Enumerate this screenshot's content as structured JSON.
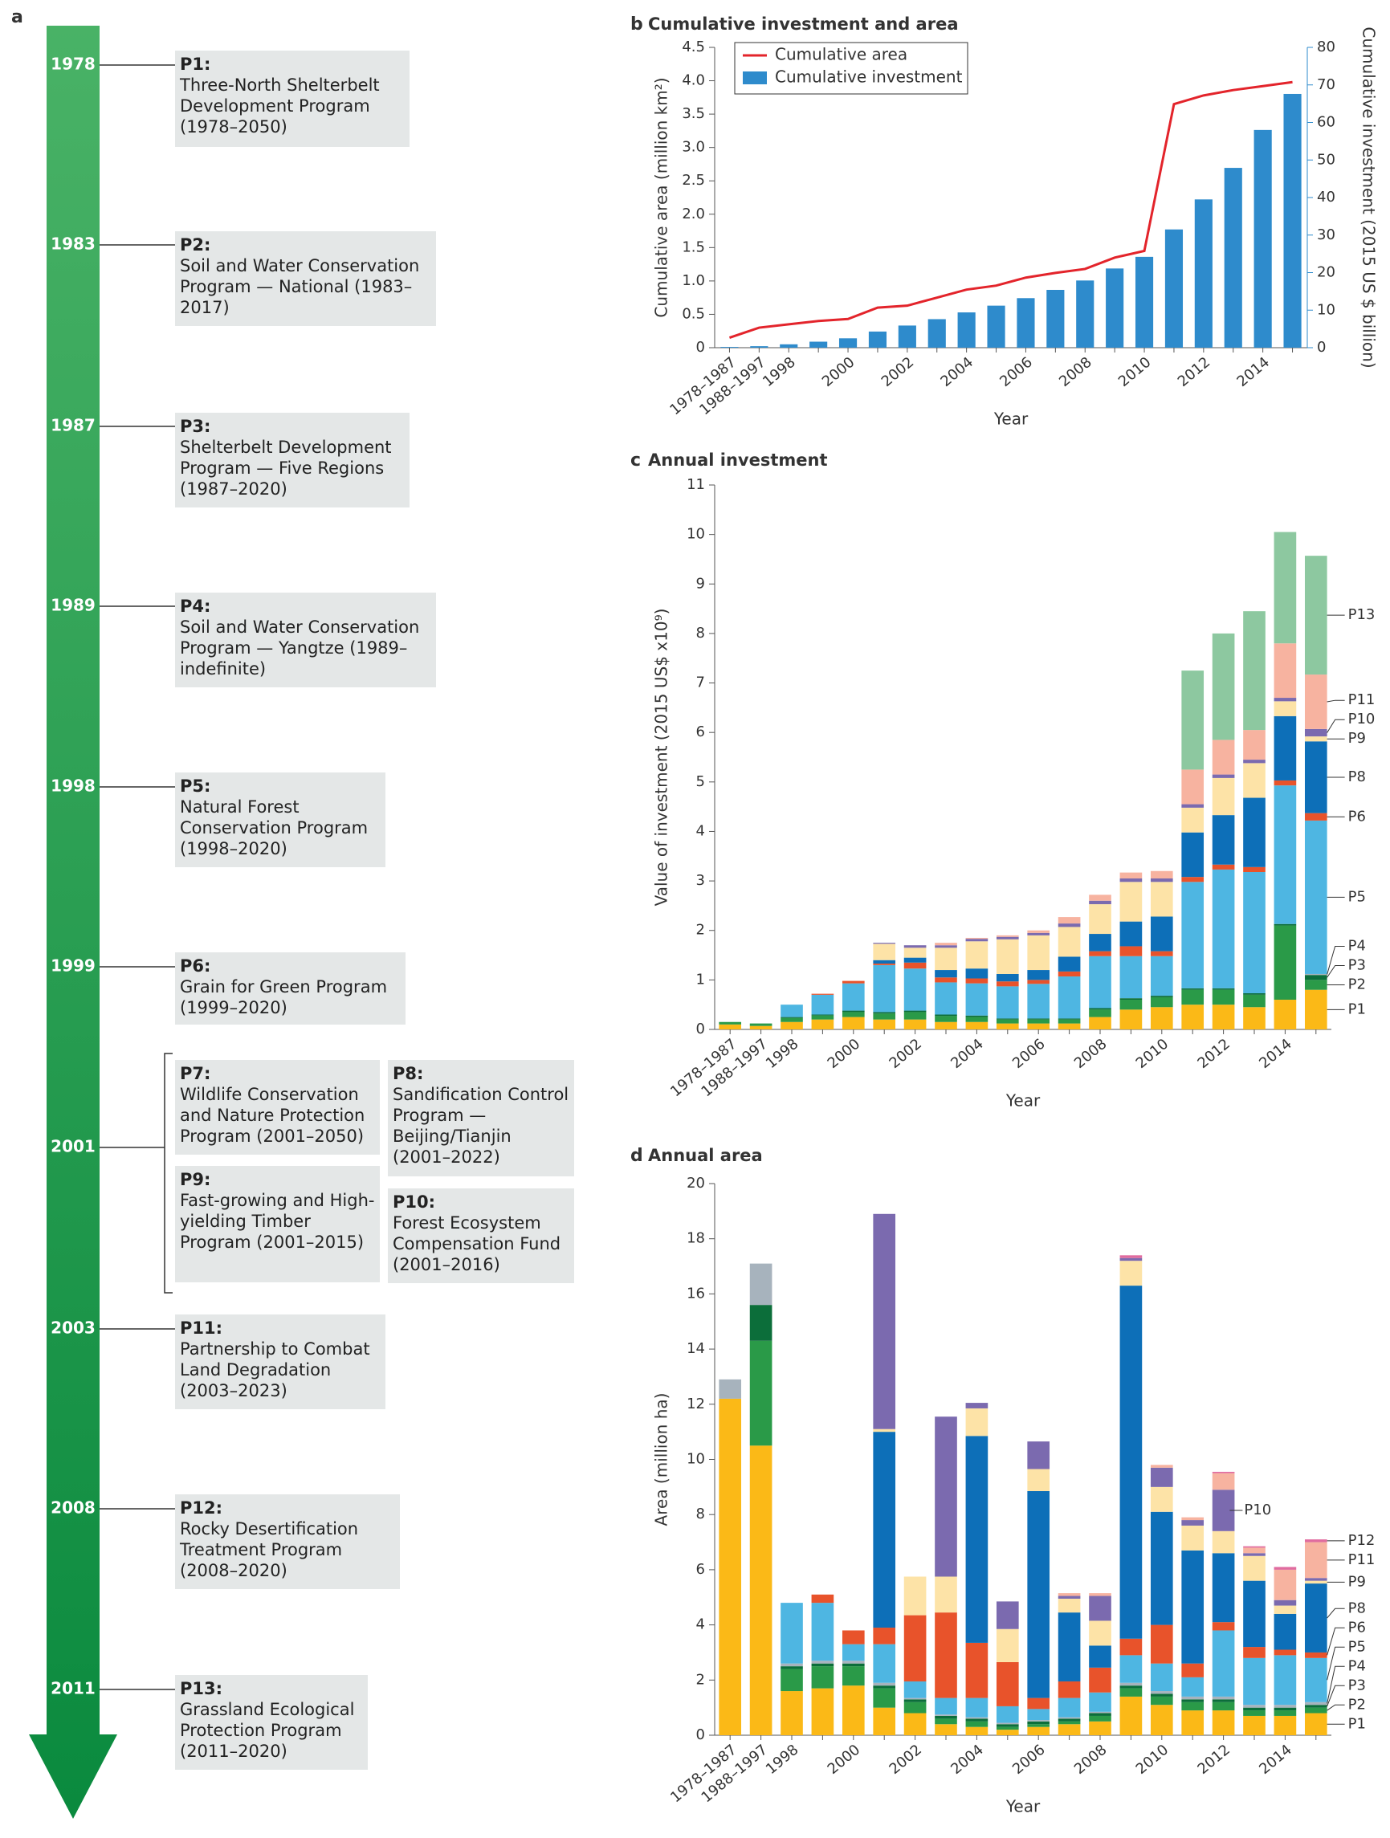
{
  "timeline": {
    "letter": "a",
    "years": [
      "1978",
      "1983",
      "1987",
      "1989",
      "1998",
      "1999",
      "2001",
      "2003",
      "2008",
      "2011"
    ],
    "programs": [
      {
        "code": "P1:",
        "name": "Three-North Shelterbelt Development Program",
        "period": "(1978–2050)"
      },
      {
        "code": "P2:",
        "name": "Soil and Water Conservation Program — National",
        "period": "(1983–2017)"
      },
      {
        "code": "P3:",
        "name": "Shelterbelt Development Program — Five Regions",
        "period": "(1987–2020)"
      },
      {
        "code": "P4:",
        "name": "Soil and Water Conservation Program — Yangtze",
        "period": "(1989–indefinite)"
      },
      {
        "code": "P5:",
        "name": "Natural Forest Conservation Program",
        "period": "(1998–2020)"
      },
      {
        "code": "P6:",
        "name": "Grain for Green Program",
        "period": "(1999–2020)"
      },
      {
        "code": "P7:",
        "name": "Wildlife Conservation and Nature Protection Program",
        "period": "(2001–2050)"
      },
      {
        "code": "P8:",
        "name": "Sandification Control Program — Beijing/Tianjin",
        "period": "(2001–2022)"
      },
      {
        "code": "P9:",
        "name": "Fast-growing and High-yielding Timber Program",
        "period": "(2001–2015)"
      },
      {
        "code": "P10:",
        "name": "Forest Ecosystem Compensation Fund",
        "period": "(2001–2016)"
      },
      {
        "code": "P11:",
        "name": "Partnership to Combat Land Degradation",
        "period": "(2003–2023)"
      },
      {
        "code": "P12:",
        "name": "Rocky Desertification Treatment Program",
        "period": "(2008–2020)"
      },
      {
        "code": "P13:",
        "name": "Grassland Ecological Protection Program",
        "period": "(2011–2020)"
      }
    ]
  },
  "chart_data": [
    {
      "type": "combo",
      "letter": "b",
      "title": "Cumulative investment and area",
      "xlabel": "Year",
      "ylabel": "Cumulative area (million km²)",
      "y2label": "Cumulative investment (2015 US $ billion)",
      "categories": [
        "1978–1987",
        "1988–1997",
        "1998",
        null,
        "2000",
        null,
        "2002",
        null,
        "2004",
        null,
        "2006",
        null,
        "2008",
        null,
        "2010",
        null,
        "2012",
        null,
        "2014",
        null
      ],
      "ylim": [
        0,
        4.5
      ],
      "yticks": [
        0,
        0.5,
        {
          "value": 1,
          "label": "1.0"
        },
        1.5,
        {
          "value": 2,
          "label": "2.0"
        },
        2.5,
        {
          "value": 3,
          "label": "3.0"
        },
        3.5,
        {
          "value": 4,
          "label": "4.0"
        },
        4.5
      ],
      "y2lim": [
        0,
        80
      ],
      "y2ticks": [
        0,
        10,
        20,
        30,
        40,
        50,
        60,
        70,
        80
      ],
      "legend": "top-left",
      "series": [
        {
          "name": "Cumulative area",
          "mark": "line",
          "color": "#e3242b",
          "values": [
            0.15,
            0.3,
            0.35,
            0.4,
            0.43,
            0.6,
            0.63,
            0.75,
            0.87,
            0.93,
            1.05,
            1.12,
            1.18,
            1.35,
            1.45,
            3.65,
            3.78,
            3.86,
            3.92,
            3.98
          ]
        },
        {
          "name": "Cumulative investment",
          "mark": "bar",
          "axis": "y2",
          "color": "#2e8bcc",
          "values": [
            0.2,
            0.4,
            0.9,
            1.6,
            2.5,
            4.3,
            5.9,
            7.6,
            9.4,
            11.2,
            13.2,
            15.4,
            17.9,
            21.1,
            24.2,
            31.5,
            39.5,
            47.9,
            58,
            67.6
          ]
        }
      ]
    },
    {
      "type": "stacked",
      "letter": "c",
      "title": "Annual investment",
      "xlabel": "Year",
      "ylabel": "Value of investment (2015 US$ x10⁹)",
      "categories": [
        "1978–1987",
        "1988–1997",
        "1998",
        null,
        "2000",
        null,
        "2002",
        null,
        "2004",
        null,
        "2006",
        null,
        "2008",
        null,
        "2010",
        null,
        "2012",
        null,
        "2014",
        null
      ],
      "ylim": [
        0,
        11
      ],
      "yticks": [
        0,
        1,
        2,
        3,
        4,
        5,
        6,
        7,
        8,
        9,
        10,
        11
      ],
      "series": [
        {
          "name": "P1",
          "color": "#fbb917",
          "values": [
            0.1,
            0.07,
            0.15,
            0.2,
            0.25,
            0.2,
            0.2,
            0.15,
            0.15,
            0.12,
            0.12,
            0.12,
            0.25,
            0.4,
            0.45,
            0.5,
            0.5,
            0.45,
            0.6,
            0.8
          ]
        },
        {
          "name": "P2",
          "color": "#2a9a48",
          "values": [
            0.05,
            0.05,
            0.08,
            0.08,
            0.1,
            0.12,
            0.15,
            0.12,
            0.1,
            0.08,
            0.08,
            0.08,
            0.15,
            0.2,
            0.2,
            0.3,
            0.3,
            0.25,
            1.5,
            0.2
          ]
        },
        {
          "name": "P3",
          "color": "#0c6e3a",
          "values": [
            0,
            0,
            0.02,
            0.02,
            0.03,
            0.03,
            0.03,
            0.03,
            0.03,
            0.02,
            0.02,
            0.02,
            0.03,
            0.03,
            0.03,
            0.03,
            0.03,
            0.03,
            0.03,
            0.1
          ]
        },
        {
          "name": "P4",
          "color": "#a7b3bd",
          "values": [
            0,
            0,
            0,
            0,
            0,
            0,
            0,
            0,
            0,
            0,
            0,
            0,
            0,
            0,
            0,
            0,
            0,
            0,
            0,
            0.02
          ]
        },
        {
          "name": "P5",
          "color": "#4eb6e2",
          "values": [
            0,
            0,
            0.25,
            0.4,
            0.55,
            0.95,
            0.85,
            0.65,
            0.65,
            0.65,
            0.7,
            0.85,
            1.05,
            0.85,
            0.8,
            2.15,
            2.4,
            2.45,
            2.8,
            3.1
          ]
        },
        {
          "name": "P6",
          "color": "#e8532b",
          "values": [
            0,
            0,
            0,
            0.02,
            0.05,
            0.03,
            0.12,
            0.1,
            0.1,
            0.1,
            0.08,
            0.1,
            0.1,
            0.2,
            0.1,
            0.1,
            0.1,
            0.1,
            0.1,
            0.15
          ]
        },
        {
          "name": "P8",
          "color": "#0d6fb8",
          "values": [
            0,
            0,
            0,
            0,
            0,
            0.07,
            0.1,
            0.15,
            0.2,
            0.15,
            0.2,
            0.3,
            0.35,
            0.5,
            0.7,
            0.9,
            1.0,
            1.4,
            1.3,
            1.45
          ]
        },
        {
          "name": "P9",
          "color": "#fde3a7",
          "values": [
            0,
            0,
            0,
            0,
            0,
            0.33,
            0.2,
            0.45,
            0.55,
            0.7,
            0.7,
            0.6,
            0.6,
            0.8,
            0.7,
            0.5,
            0.75,
            0.7,
            0.3,
            0.1
          ]
        },
        {
          "name": "P10",
          "color": "#7b6aaf",
          "values": [
            0,
            0,
            0,
            0,
            0,
            0.02,
            0.05,
            0.05,
            0.05,
            0.05,
            0.05,
            0.07,
            0.07,
            0.07,
            0.07,
            0.07,
            0.07,
            0.07,
            0.07,
            0.15
          ]
        },
        {
          "name": "P11",
          "color": "#f7b3a0",
          "values": [
            0,
            0,
            0,
            0,
            0,
            0,
            0,
            0.05,
            0.02,
            0.03,
            0.05,
            0.13,
            0.12,
            0.12,
            0.15,
            0.7,
            0.7,
            0.6,
            1.1,
            1.1
          ]
        },
        {
          "name": "P13",
          "color": "#8dc8a0",
          "values": [
            0,
            0,
            0,
            0,
            0,
            0,
            0,
            0,
            0,
            0,
            0,
            0,
            0,
            0,
            0,
            2.0,
            2.15,
            2.4,
            2.25,
            2.4
          ]
        }
      ]
    },
    {
      "type": "stacked",
      "letter": "d",
      "title": "Annual area",
      "xlabel": "Year",
      "ylabel": "Area (million ha)",
      "categories": [
        "1978–1987",
        "1988–1997",
        "1998",
        null,
        "2000",
        null,
        "2002",
        null,
        "2004",
        null,
        "2006",
        null,
        "2008",
        null,
        "2010",
        null,
        "2012",
        null,
        "2014",
        null
      ],
      "ylim": [
        0,
        20
      ],
      "yticks": [
        0,
        2,
        4,
        6,
        8,
        10,
        12,
        14,
        16,
        18,
        20
      ],
      "series": [
        {
          "name": "P1",
          "color": "#fbb917",
          "values": [
            12.2,
            10.5,
            1.6,
            1.7,
            1.8,
            1.0,
            0.8,
            0.4,
            0.3,
            0.2,
            0.3,
            0.4,
            0.5,
            1.4,
            1.1,
            0.9,
            0.9,
            0.7,
            0.7,
            0.8
          ]
        },
        {
          "name": "P2",
          "color": "#2a9a48",
          "values": [
            0,
            3.8,
            0.8,
            0.8,
            0.7,
            0.7,
            0.4,
            0.2,
            0.2,
            0.1,
            0.1,
            0.1,
            0.2,
            0.3,
            0.3,
            0.3,
            0.3,
            0.2,
            0.2,
            0.2
          ]
        },
        {
          "name": "P3",
          "color": "#0c6e3a",
          "values": [
            0,
            1.3,
            0.1,
            0.1,
            0.1,
            0.1,
            0.1,
            0.1,
            0.1,
            0.1,
            0.1,
            0.1,
            0.1,
            0.1,
            0.1,
            0.1,
            0.1,
            0.1,
            0.1,
            0.1
          ]
        },
        {
          "name": "P4",
          "color": "#a7b3bd",
          "values": [
            0.7,
            1.5,
            0.1,
            0.1,
            0.1,
            0.1,
            0.05,
            0.05,
            0.05,
            0.05,
            0.05,
            0.05,
            0.05,
            0.1,
            0.1,
            0.1,
            0.1,
            0.1,
            0.1,
            0.1
          ]
        },
        {
          "name": "P5",
          "color": "#4eb6e2",
          "values": [
            0,
            0,
            2.2,
            2.1,
            0.6,
            1.4,
            0.6,
            0.6,
            0.7,
            0.6,
            0.4,
            0.7,
            0.7,
            1.0,
            1.0,
            0.7,
            2.4,
            1.7,
            1.8,
            1.6
          ]
        },
        {
          "name": "P6",
          "color": "#e8532b",
          "values": [
            0,
            0,
            0,
            0.3,
            0.5,
            0.6,
            2.4,
            3.1,
            2.0,
            1.6,
            0.4,
            0.6,
            0.9,
            0.6,
            1.4,
            0.5,
            0.3,
            0.4,
            0.2,
            0.2
          ]
        },
        {
          "name": "P8",
          "color": "#0d6fb8",
          "values": [
            0,
            0,
            0,
            0,
            0,
            7.1,
            0,
            0,
            7.5,
            0,
            7.5,
            2.5,
            0.8,
            12.8,
            4.1,
            4.1,
            2.5,
            2.4,
            1.3,
            2.5
          ]
        },
        {
          "name": "P9",
          "color": "#fde3a7",
          "values": [
            0,
            0,
            0,
            0,
            0,
            0.1,
            1.4,
            1.3,
            1.0,
            1.2,
            0.8,
            0.5,
            0.9,
            0.9,
            0.9,
            0.9,
            0.8,
            0.9,
            0.3,
            0.1
          ]
        },
        {
          "name": "P10",
          "color": "#7b6aaf",
          "values": [
            0,
            0,
            0,
            0,
            0,
            7.8,
            0,
            5.8,
            0.2,
            1.0,
            1.0,
            0.1,
            0.9,
            0.1,
            0.7,
            0.2,
            1.5,
            0.1,
            0.2,
            0.1
          ]
        },
        {
          "name": "P11",
          "color": "#f7b3a0",
          "values": [
            0,
            0,
            0,
            0,
            0,
            0,
            0,
            0,
            0,
            0,
            0,
            0.1,
            0.1,
            0,
            0.1,
            0.1,
            0.6,
            0.2,
            1.1,
            1.3
          ]
        },
        {
          "name": "P12",
          "color": "#e06c9f",
          "values": [
            0,
            0,
            0,
            0,
            0,
            0,
            0,
            0,
            0,
            0,
            0,
            0,
            0,
            0.1,
            0,
            0,
            0.05,
            0.05,
            0.1,
            0.1
          ]
        }
      ]
    }
  ]
}
